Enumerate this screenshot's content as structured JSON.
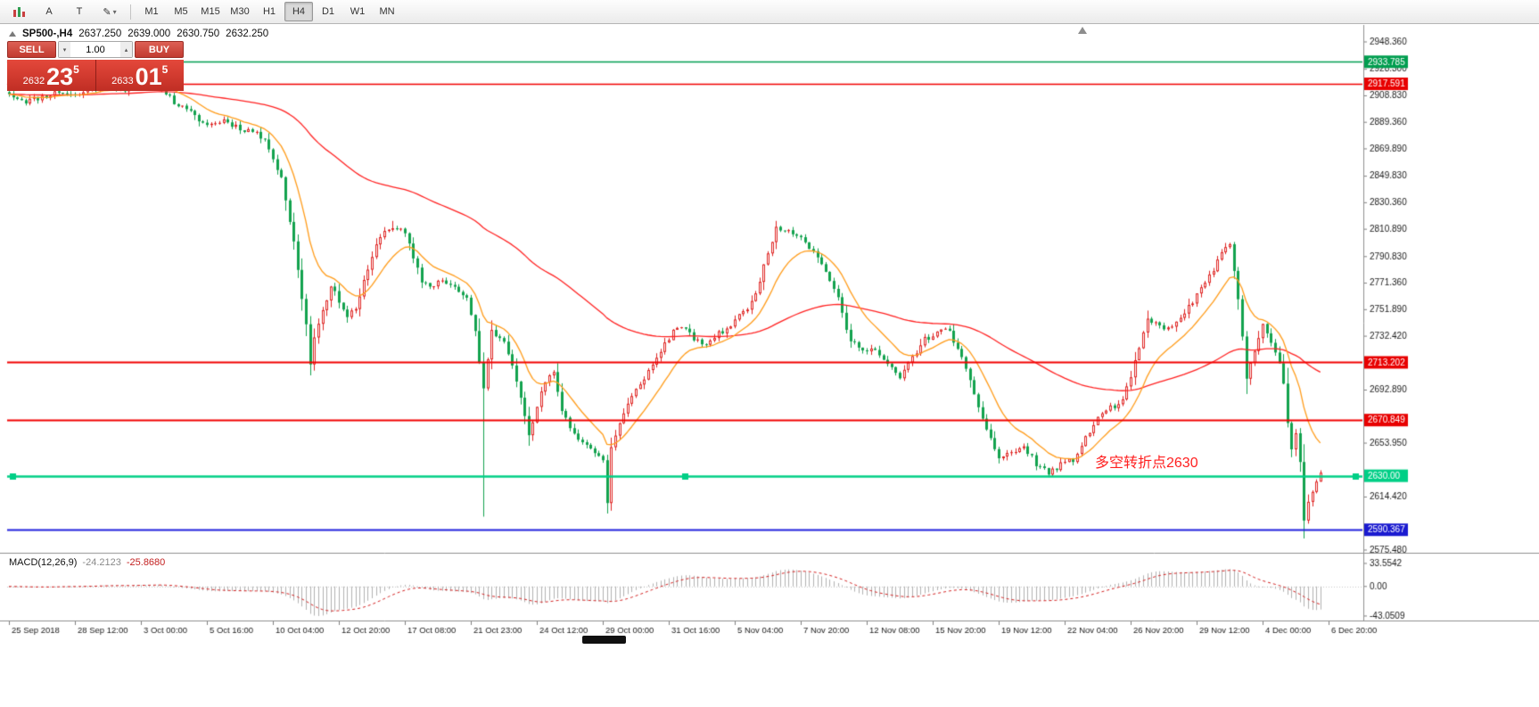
{
  "toolbar": {
    "text_tool_a": "A",
    "text_tool_t": "T",
    "icons": [
      "candlestick-chart-icon",
      "text-label-icon-a",
      "text-label-icon-t",
      "draw-tool-icon"
    ],
    "timeframes": [
      "M1",
      "M5",
      "M15",
      "M30",
      "H1",
      "H4",
      "D1",
      "W1",
      "MN"
    ],
    "active_timeframe": "H4"
  },
  "chart_header": {
    "symbol": "SP500-,H4",
    "open": "2637.250",
    "high": "2639.000",
    "low": "2630.750",
    "close": "2632.250"
  },
  "trade_panel": {
    "sell_label": "SELL",
    "buy_label": "BUY",
    "volume": "1.00",
    "bid_prefix": "2632",
    "bid_big": "23",
    "bid_sup": "5",
    "ask_prefix": "2633",
    "ask_big": "01",
    "ask_sup": "5"
  },
  "annotation": {
    "text": "多空转折点2630",
    "color": "#ff2020"
  },
  "macd_panel": {
    "label": "MACD(12,26,9)",
    "macd_value": "-24.2123",
    "signal_value": "-25.8680",
    "axis_labels": [
      {
        "text": "33.5542",
        "value": 33.5542
      },
      {
        "text": "0.00",
        "value": 0
      },
      {
        "text": "-43.0509",
        "value": -43.0509
      }
    ]
  },
  "price_axis": {
    "ticks": [
      {
        "text": "2948.360",
        "value": 2948.36
      },
      {
        "text": "2928.300",
        "value": 2928.3
      },
      {
        "text": "2908.830",
        "value": 2908.83
      },
      {
        "text": "2889.360",
        "value": 2889.36
      },
      {
        "text": "2869.890",
        "value": 2869.89
      },
      {
        "text": "2849.830",
        "value": 2849.83
      },
      {
        "text": "2830.360",
        "value": 2830.36
      },
      {
        "text": "2810.890",
        "value": 2810.89
      },
      {
        "text": "2790.830",
        "value": 2790.83
      },
      {
        "text": "2771.360",
        "value": 2771.36
      },
      {
        "text": "2751.890",
        "value": 2751.89
      },
      {
        "text": "2732.420",
        "value": 2732.42
      },
      {
        "text": "2692.890",
        "value": 2692.89
      },
      {
        "text": "2653.950",
        "value": 2653.95
      },
      {
        "text": "2614.420",
        "value": 2614.42
      },
      {
        "text": "2575.480",
        "value": 2575.48
      }
    ],
    "badges": [
      {
        "text": "2933.785",
        "value": 2933.785,
        "color": "#009e4f"
      },
      {
        "text": "2917.591",
        "value": 2917.591,
        "color": "#e80000"
      },
      {
        "text": "2713.202",
        "value": 2713.202,
        "color": "#e80000"
      },
      {
        "text": "2670.849",
        "value": 2670.849,
        "color": "#e80000"
      },
      {
        "text": "2630.00",
        "value": 2630.0,
        "color": "#00cf86"
      },
      {
        "text": "2590.367",
        "value": 2590.367,
        "color": "#1a1ad0"
      }
    ]
  },
  "time_axis": {
    "labels": [
      "25 Sep 2018",
      "28 Sep 12:00",
      "3 Oct 00:00",
      "5 Oct 16:00",
      "10 Oct 04:00",
      "12 Oct 20:00",
      "17 Oct 08:00",
      "21 Oct 23:00",
      "24 Oct 12:00",
      "29 Oct 00:00",
      "31 Oct 16:00",
      "5 Nov 04:00",
      "7 Nov 20:00",
      "12 Nov 08:00",
      "15 Nov 20:00",
      "19 Nov 12:00",
      "22 Nov 04:00",
      "26 Nov 20:00",
      "29 Nov 12:00",
      "4 Dec 00:00",
      "6 Dec 20:00"
    ]
  },
  "hlines": [
    {
      "price": 2933.785,
      "color": "#009e4f",
      "width": 1.4,
      "handles": false
    },
    {
      "price": 2917.591,
      "color": "#f20000",
      "width": 1.4,
      "handles": false
    },
    {
      "price": 2713.202,
      "color": "#f20000",
      "width": 2,
      "handles": false
    },
    {
      "price": 2670.849,
      "color": "#f20000",
      "width": 2,
      "handles": false
    },
    {
      "price": 2630.0,
      "color": "#00cf86",
      "width": 2.4,
      "handles": true
    },
    {
      "price": 2590.367,
      "color": "#2020dd",
      "width": 2,
      "handles": false
    }
  ],
  "chart_data": {
    "type": "candlestick-ohlc",
    "symbol": "SP500-,H4",
    "timeframe": "H4",
    "bars": 319,
    "last_close": 2632.25,
    "up_color": "#df2422",
    "down_color": "#12a24e",
    "close_waypoints": [
      [
        0,
        2910
      ],
      [
        4,
        2905
      ],
      [
        8,
        2908
      ],
      [
        12,
        2912
      ],
      [
        16,
        2909
      ],
      [
        20,
        2914
      ],
      [
        24,
        2916
      ],
      [
        28,
        2914
      ],
      [
        32,
        2918
      ],
      [
        36,
        2921
      ],
      [
        38,
        2911
      ],
      [
        40,
        2904
      ],
      [
        44,
        2896
      ],
      [
        48,
        2887
      ],
      [
        52,
        2891
      ],
      [
        56,
        2885
      ],
      [
        60,
        2882
      ],
      [
        63,
        2871
      ],
      [
        66,
        2849
      ],
      [
        69,
        2801
      ],
      [
        72,
        2741
      ],
      [
        73,
        2713
      ],
      [
        74,
        2731
      ],
      [
        76,
        2753
      ],
      [
        78,
        2768
      ],
      [
        80,
        2759
      ],
      [
        82,
        2747
      ],
      [
        84,
        2753
      ],
      [
        87,
        2781
      ],
      [
        90,
        2807
      ],
      [
        93,
        2813
      ],
      [
        96,
        2808
      ],
      [
        98,
        2789
      ],
      [
        100,
        2773
      ],
      [
        102,
        2769
      ],
      [
        105,
        2774
      ],
      [
        108,
        2768
      ],
      [
        111,
        2759
      ],
      [
        113,
        2736
      ],
      [
        115,
        2693
      ],
      [
        117,
        2736
      ],
      [
        120,
        2729
      ],
      [
        122,
        2713
      ],
      [
        124,
        2689
      ],
      [
        126,
        2658
      ],
      [
        128,
        2681
      ],
      [
        130,
        2699
      ],
      [
        132,
        2705
      ],
      [
        134,
        2679
      ],
      [
        136,
        2665
      ],
      [
        138,
        2658
      ],
      [
        141,
        2650
      ],
      [
        144,
        2641
      ],
      [
        145,
        2611
      ],
      [
        146,
        2651
      ],
      [
        148,
        2668
      ],
      [
        150,
        2682
      ],
      [
        153,
        2698
      ],
      [
        156,
        2711
      ],
      [
        159,
        2727
      ],
      [
        162,
        2740
      ],
      [
        165,
        2734
      ],
      [
        168,
        2725
      ],
      [
        171,
        2732
      ],
      [
        174,
        2738
      ],
      [
        177,
        2747
      ],
      [
        180,
        2757
      ],
      [
        183,
        2783
      ],
      [
        186,
        2813
      ],
      [
        189,
        2810
      ],
      [
        192,
        2806
      ],
      [
        195,
        2794
      ],
      [
        198,
        2781
      ],
      [
        201,
        2759
      ],
      [
        204,
        2728
      ],
      [
        207,
        2724
      ],
      [
        210,
        2722
      ],
      [
        213,
        2711
      ],
      [
        216,
        2702
      ],
      [
        219,
        2717
      ],
      [
        222,
        2730
      ],
      [
        225,
        2735
      ],
      [
        228,
        2737
      ],
      [
        231,
        2715
      ],
      [
        234,
        2690
      ],
      [
        237,
        2664
      ],
      [
        240,
        2643
      ],
      [
        243,
        2647
      ],
      [
        246,
        2651
      ],
      [
        249,
        2639
      ],
      [
        252,
        2632
      ],
      [
        255,
        2638
      ],
      [
        258,
        2642
      ],
      [
        261,
        2657
      ],
      [
        264,
        2673
      ],
      [
        267,
        2680
      ],
      [
        270,
        2684
      ],
      [
        273,
        2713
      ],
      [
        276,
        2744
      ],
      [
        279,
        2740
      ],
      [
        282,
        2738
      ],
      [
        285,
        2750
      ],
      [
        288,
        2762
      ],
      [
        291,
        2777
      ],
      [
        294,
        2792
      ],
      [
        296,
        2800
      ],
      [
        298,
        2759
      ],
      [
        300,
        2702
      ],
      [
        302,
        2723
      ],
      [
        304,
        2743
      ],
      [
        306,
        2727
      ],
      [
        308,
        2711
      ],
      [
        309,
        2696
      ],
      [
        310,
        2669
      ],
      [
        311,
        2650
      ],
      [
        312,
        2662
      ],
      [
        313,
        2639
      ],
      [
        314,
        2598
      ],
      [
        315,
        2612
      ],
      [
        316,
        2620
      ],
      [
        317,
        2627
      ],
      [
        318,
        2632.25
      ]
    ],
    "spike_lows": [
      [
        73,
        2707
      ],
      [
        115,
        2600
      ],
      [
        126,
        2652
      ],
      [
        145,
        2603
      ],
      [
        252,
        2629
      ],
      [
        300,
        2690
      ],
      [
        314,
        2584
      ]
    ],
    "spike_highs": [
      [
        37,
        2926
      ],
      [
        93,
        2817
      ],
      [
        186,
        2816
      ],
      [
        296,
        2801
      ]
    ],
    "indicators": {
      "ma_fast": {
        "period": 13,
        "color": "#ff9c1a"
      },
      "ma_slow": {
        "period": 89,
        "color": "#ff2222"
      },
      "macd": {
        "fast": 12,
        "slow": 26,
        "signal": 9
      }
    }
  }
}
